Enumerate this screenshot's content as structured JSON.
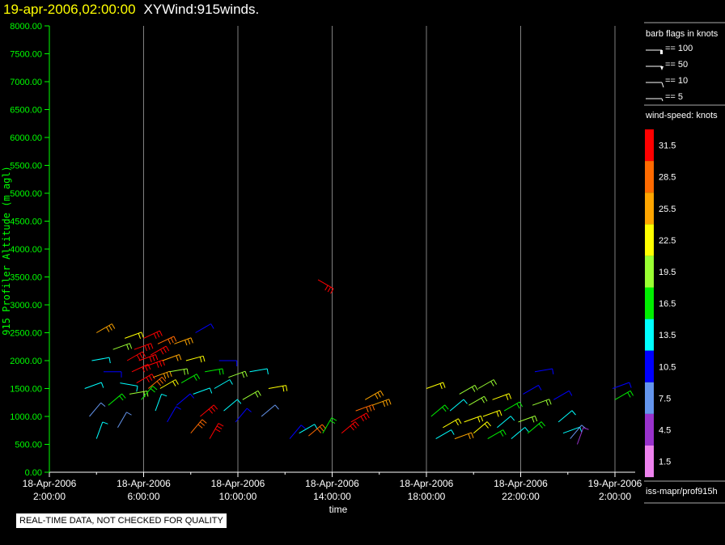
{
  "title": {
    "datetime": "19-apr-2006,02:00:00",
    "name": "XYWind:915winds."
  },
  "note": "REAL-TIME DATA, NOT CHECKED FOR QUALITY",
  "legend": {
    "barb_title": "barb flags in knots",
    "barbs": [
      "== 100",
      "== 50",
      "== 10",
      "== 5"
    ],
    "speed_title": "wind-speed: knots",
    "source": "iss-mapr/prof915h"
  },
  "colors": {
    "axis": "#00ff00",
    "grid": "#808080"
  },
  "chart_data": {
    "type": "scatter",
    "xlabel": "time",
    "ylabel": "915 Profiler Altitude (m agl)",
    "xlim_hours": [
      0,
      24
    ],
    "ylim": [
      0,
      8000
    ],
    "x_ticks": [
      {
        "h": 0,
        "d": "18-Apr-2006",
        "t": "2:00:00"
      },
      {
        "h": 4,
        "d": "18-Apr-2006",
        "t": "6:00:00"
      },
      {
        "h": 8,
        "d": "18-Apr-2006",
        "t": "10:00:00"
      },
      {
        "h": 12,
        "d": "18-Apr-2006",
        "t": "14:00:00"
      },
      {
        "h": 16,
        "d": "18-Apr-2006",
        "t": "18:00:00"
      },
      {
        "h": 20,
        "d": "18-Apr-2006",
        "t": "22:00:00"
      },
      {
        "h": 24,
        "d": "19-Apr-2006",
        "t": "2:00:00"
      }
    ],
    "y_ticks": [
      "0.00",
      "500.00",
      "1000.00",
      "1500.00",
      "2000.00",
      "2500.00",
      "3000.00",
      "3500.00",
      "4000.00",
      "4500.00",
      "5000.00",
      "5500.00",
      "6000.00",
      "6500.00",
      "7000.00",
      "7500.00",
      "8000.00"
    ],
    "colorbar": {
      "labels": [
        "31.5",
        "28.5",
        "25.5",
        "22.5",
        "19.5",
        "16.5",
        "13.5",
        "10.5",
        "7.5",
        "4.5",
        "1.5"
      ],
      "colors": [
        "#ff0000",
        "#ff6a00",
        "#ffa500",
        "#ffff00",
        "#9aff32",
        "#00ee00",
        "#00ffff",
        "#0000ff",
        "#6495ed",
        "#9932cc",
        "#ee82ee"
      ]
    },
    "barbs_note": "[hour since 18-Apr 02:00, altitude m, speed kt, direction deg]",
    "barbs": [
      [
        1.5,
        1500,
        12,
        250
      ],
      [
        1.7,
        1000,
        8,
        220
      ],
      [
        1.8,
        2000,
        14,
        260
      ],
      [
        2.0,
        2500,
        25,
        240
      ],
      [
        2.0,
        600,
        13,
        200
      ],
      [
        2.3,
        1800,
        11,
        270
      ],
      [
        2.5,
        1200,
        16,
        230
      ],
      [
        2.7,
        2200,
        19,
        250
      ],
      [
        2.9,
        800,
        6,
        210
      ],
      [
        3.0,
        1600,
        13,
        280
      ],
      [
        3.2,
        2400,
        22,
        250
      ],
      [
        3.3,
        2000,
        30,
        240
      ],
      [
        3.4,
        1400,
        20,
        260
      ],
      [
        3.5,
        1800,
        31,
        245
      ],
      [
        3.6,
        2200,
        32,
        250
      ],
      [
        3.7,
        1600,
        31,
        240
      ],
      [
        3.8,
        2000,
        33,
        250
      ],
      [
        3.9,
        1300,
        17,
        220
      ],
      [
        4.0,
        2400,
        31,
        245
      ],
      [
        4.1,
        1900,
        32,
        250
      ],
      [
        4.2,
        1500,
        28,
        230
      ],
      [
        4.3,
        2100,
        31,
        240
      ],
      [
        4.4,
        1700,
        26,
        250
      ],
      [
        4.5,
        1100,
        12,
        200
      ],
      [
        4.6,
        2300,
        28,
        245
      ],
      [
        4.7,
        1500,
        22,
        240
      ],
      [
        4.8,
        2000,
        24,
        250
      ],
      [
        5.0,
        900,
        11,
        210
      ],
      [
        5.1,
        1800,
        19,
        260
      ],
      [
        5.3,
        2300,
        26,
        250
      ],
      [
        5.4,
        1200,
        9,
        230
      ],
      [
        5.6,
        1600,
        17,
        240
      ],
      [
        5.8,
        2000,
        21,
        255
      ],
      [
        6.0,
        700,
        28,
        220
      ],
      [
        6.1,
        1400,
        14,
        250
      ],
      [
        6.2,
        2500,
        11,
        240
      ],
      [
        6.4,
        1000,
        30,
        230
      ],
      [
        6.6,
        1800,
        16,
        260
      ],
      [
        6.8,
        600,
        31,
        210
      ],
      [
        7.0,
        1500,
        12,
        240
      ],
      [
        7.2,
        2000,
        9,
        270
      ],
      [
        7.4,
        1100,
        14,
        230
      ],
      [
        7.6,
        1700,
        19,
        250
      ],
      [
        7.9,
        900,
        10,
        220
      ],
      [
        8.2,
        1300,
        20,
        240
      ],
      [
        8.5,
        1800,
        12,
        260
      ],
      [
        9.0,
        1000,
        8,
        230
      ],
      [
        9.3,
        1500,
        22,
        260
      ],
      [
        11.4,
        3450,
        31,
        300
      ],
      [
        10.2,
        600,
        10,
        220
      ],
      [
        10.6,
        700,
        13,
        240
      ],
      [
        11.0,
        650,
        28,
        230
      ],
      [
        11.6,
        700,
        17,
        210
      ],
      [
        12.4,
        700,
        31,
        230
      ],
      [
        12.8,
        900,
        30,
        240
      ],
      [
        13.0,
        1100,
        28,
        250
      ],
      [
        13.4,
        1300,
        26,
        240
      ],
      [
        13.7,
        1200,
        25,
        250
      ],
      [
        16.0,
        1500,
        22,
        250
      ],
      [
        16.2,
        1000,
        16,
        230
      ],
      [
        16.4,
        600,
        12,
        240
      ],
      [
        16.7,
        800,
        22,
        240
      ],
      [
        17.0,
        1100,
        14,
        230
      ],
      [
        17.2,
        600,
        24,
        250
      ],
      [
        17.4,
        1400,
        19,
        240
      ],
      [
        17.6,
        900,
        22,
        250
      ],
      [
        17.8,
        1200,
        18,
        240
      ],
      [
        18.0,
        700,
        22,
        230
      ],
      [
        18.2,
        1500,
        19,
        240
      ],
      [
        18.4,
        1000,
        23,
        250
      ],
      [
        18.6,
        600,
        15,
        240
      ],
      [
        18.8,
        1300,
        21,
        250
      ],
      [
        19.0,
        800,
        12,
        230
      ],
      [
        19.3,
        1100,
        17,
        240
      ],
      [
        19.6,
        600,
        13,
        230
      ],
      [
        19.9,
        900,
        20,
        250
      ],
      [
        20.1,
        1400,
        11,
        240
      ],
      [
        20.3,
        700,
        16,
        230
      ],
      [
        20.5,
        1200,
        19,
        250
      ],
      [
        20.6,
        1800,
        9,
        260
      ],
      [
        21.4,
        1300,
        9,
        240
      ],
      [
        21.6,
        900,
        12,
        230
      ],
      [
        21.8,
        700,
        13,
        250
      ],
      [
        22.1,
        600,
        8,
        220
      ],
      [
        22.4,
        500,
        5,
        200
      ],
      [
        23.9,
        1500,
        11,
        250
      ],
      [
        24.0,
        1300,
        16,
        240
      ]
    ]
  }
}
